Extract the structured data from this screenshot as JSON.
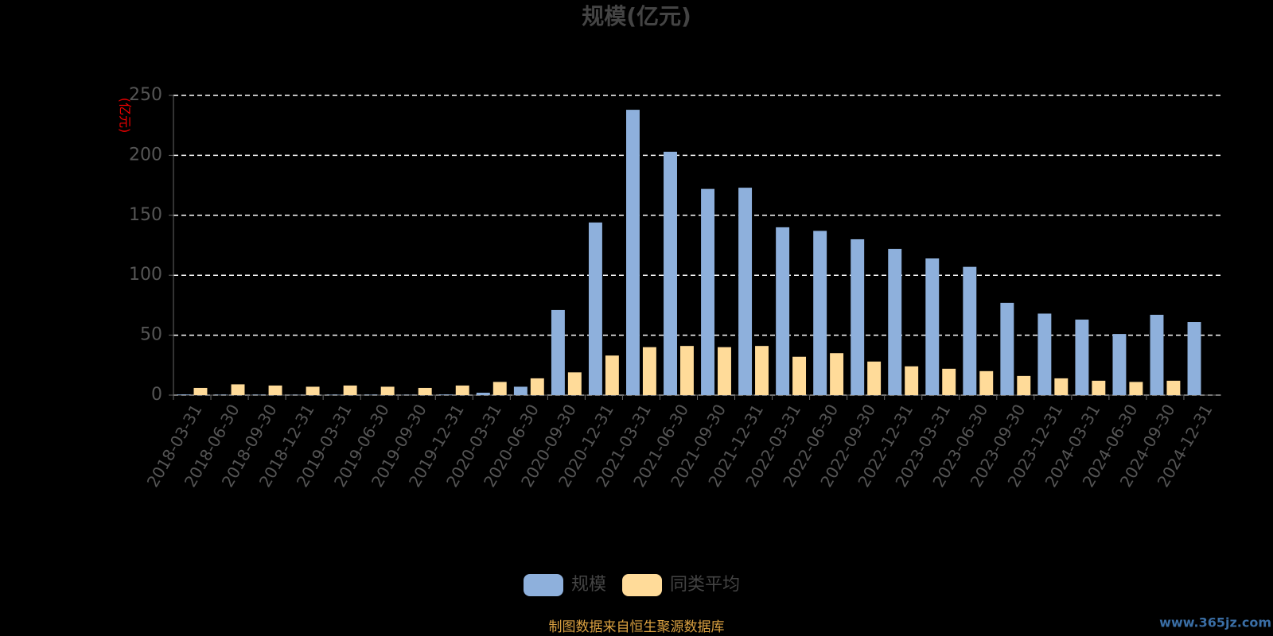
{
  "chart_data": {
    "type": "bar",
    "title": "规模(亿元)",
    "y_label": "(亿元)",
    "categories": [
      "2018-03-31",
      "2018-06-30",
      "2018-09-30",
      "2018-12-31",
      "2019-03-31",
      "2019-06-30",
      "2019-09-30",
      "2019-12-31",
      "2020-03-31",
      "2020-06-30",
      "2020-09-30",
      "2020-12-31",
      "2021-03-31",
      "2021-06-30",
      "2021-09-30",
      "2021-12-31",
      "2022-03-31",
      "2022-06-30",
      "2022-09-30",
      "2022-12-31",
      "2023-03-31",
      "2023-06-30",
      "2023-09-30",
      "2023-12-31",
      "2024-03-31",
      "2024-06-30",
      "2024-09-30",
      "2024-12-31"
    ],
    "series": [
      {
        "name": "规模",
        "color": "#8eb0dc",
        "values": [
          0.5,
          0.3,
          0.3,
          0.2,
          0.3,
          0.3,
          0.2,
          0.5,
          2,
          7,
          71,
          144,
          238,
          203,
          172,
          173,
          140,
          137,
          130,
          122,
          114,
          107,
          77,
          68,
          63,
          51,
          67,
          61
        ]
      },
      {
        "name": "同类平均",
        "color": "#ffdb99",
        "values": [
          6,
          9,
          8,
          7,
          8,
          7,
          6,
          8,
          11,
          14,
          19,
          33,
          40,
          41,
          40,
          41,
          32,
          35,
          28,
          24,
          22,
          20,
          16,
          14,
          12,
          11,
          12,
          null
        ]
      }
    ],
    "ylim": [
      0,
      250
    ],
    "yticks": [
      0,
      50,
      100,
      150,
      200,
      250
    ],
    "grid": true,
    "legend": "bottom",
    "source": "制图数据来自恒生聚源数据库",
    "watermark": "www.365jz.com"
  }
}
